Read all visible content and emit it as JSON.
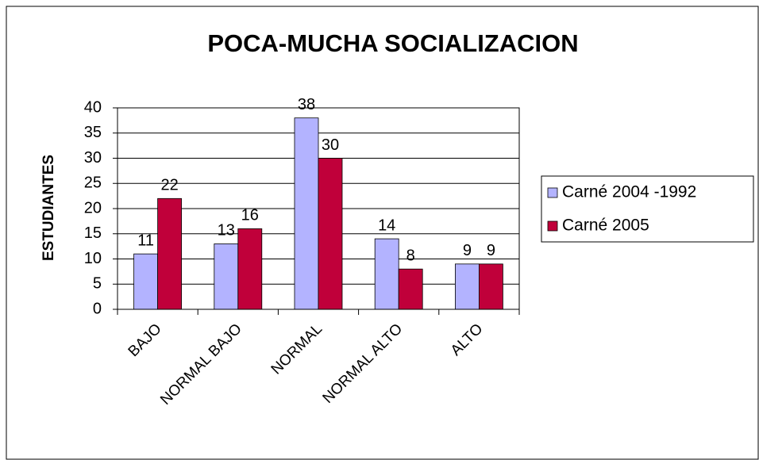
{
  "chart_data": {
    "type": "bar",
    "title": "POCA-MUCHA SOCIALIZACION",
    "y_label": "ESTUDIANTES",
    "categories": [
      "BAJO",
      "NORMAL BAJO",
      "NORMAL",
      "NORMAL ALTO",
      "ALTO"
    ],
    "series": [
      {
        "name": "Carné 2004 -1992",
        "color": "#b3b3ff",
        "values": [
          11,
          13,
          38,
          14,
          9
        ]
      },
      {
        "name": "Carné 2005",
        "color": "#c0003a",
        "values": [
          22,
          16,
          30,
          8,
          9
        ]
      }
    ],
    "ylim": [
      0,
      40
    ],
    "yticks": [
      0,
      5,
      10,
      15,
      20,
      25,
      30,
      35,
      40
    ],
    "grid": true,
    "legend": "right"
  }
}
